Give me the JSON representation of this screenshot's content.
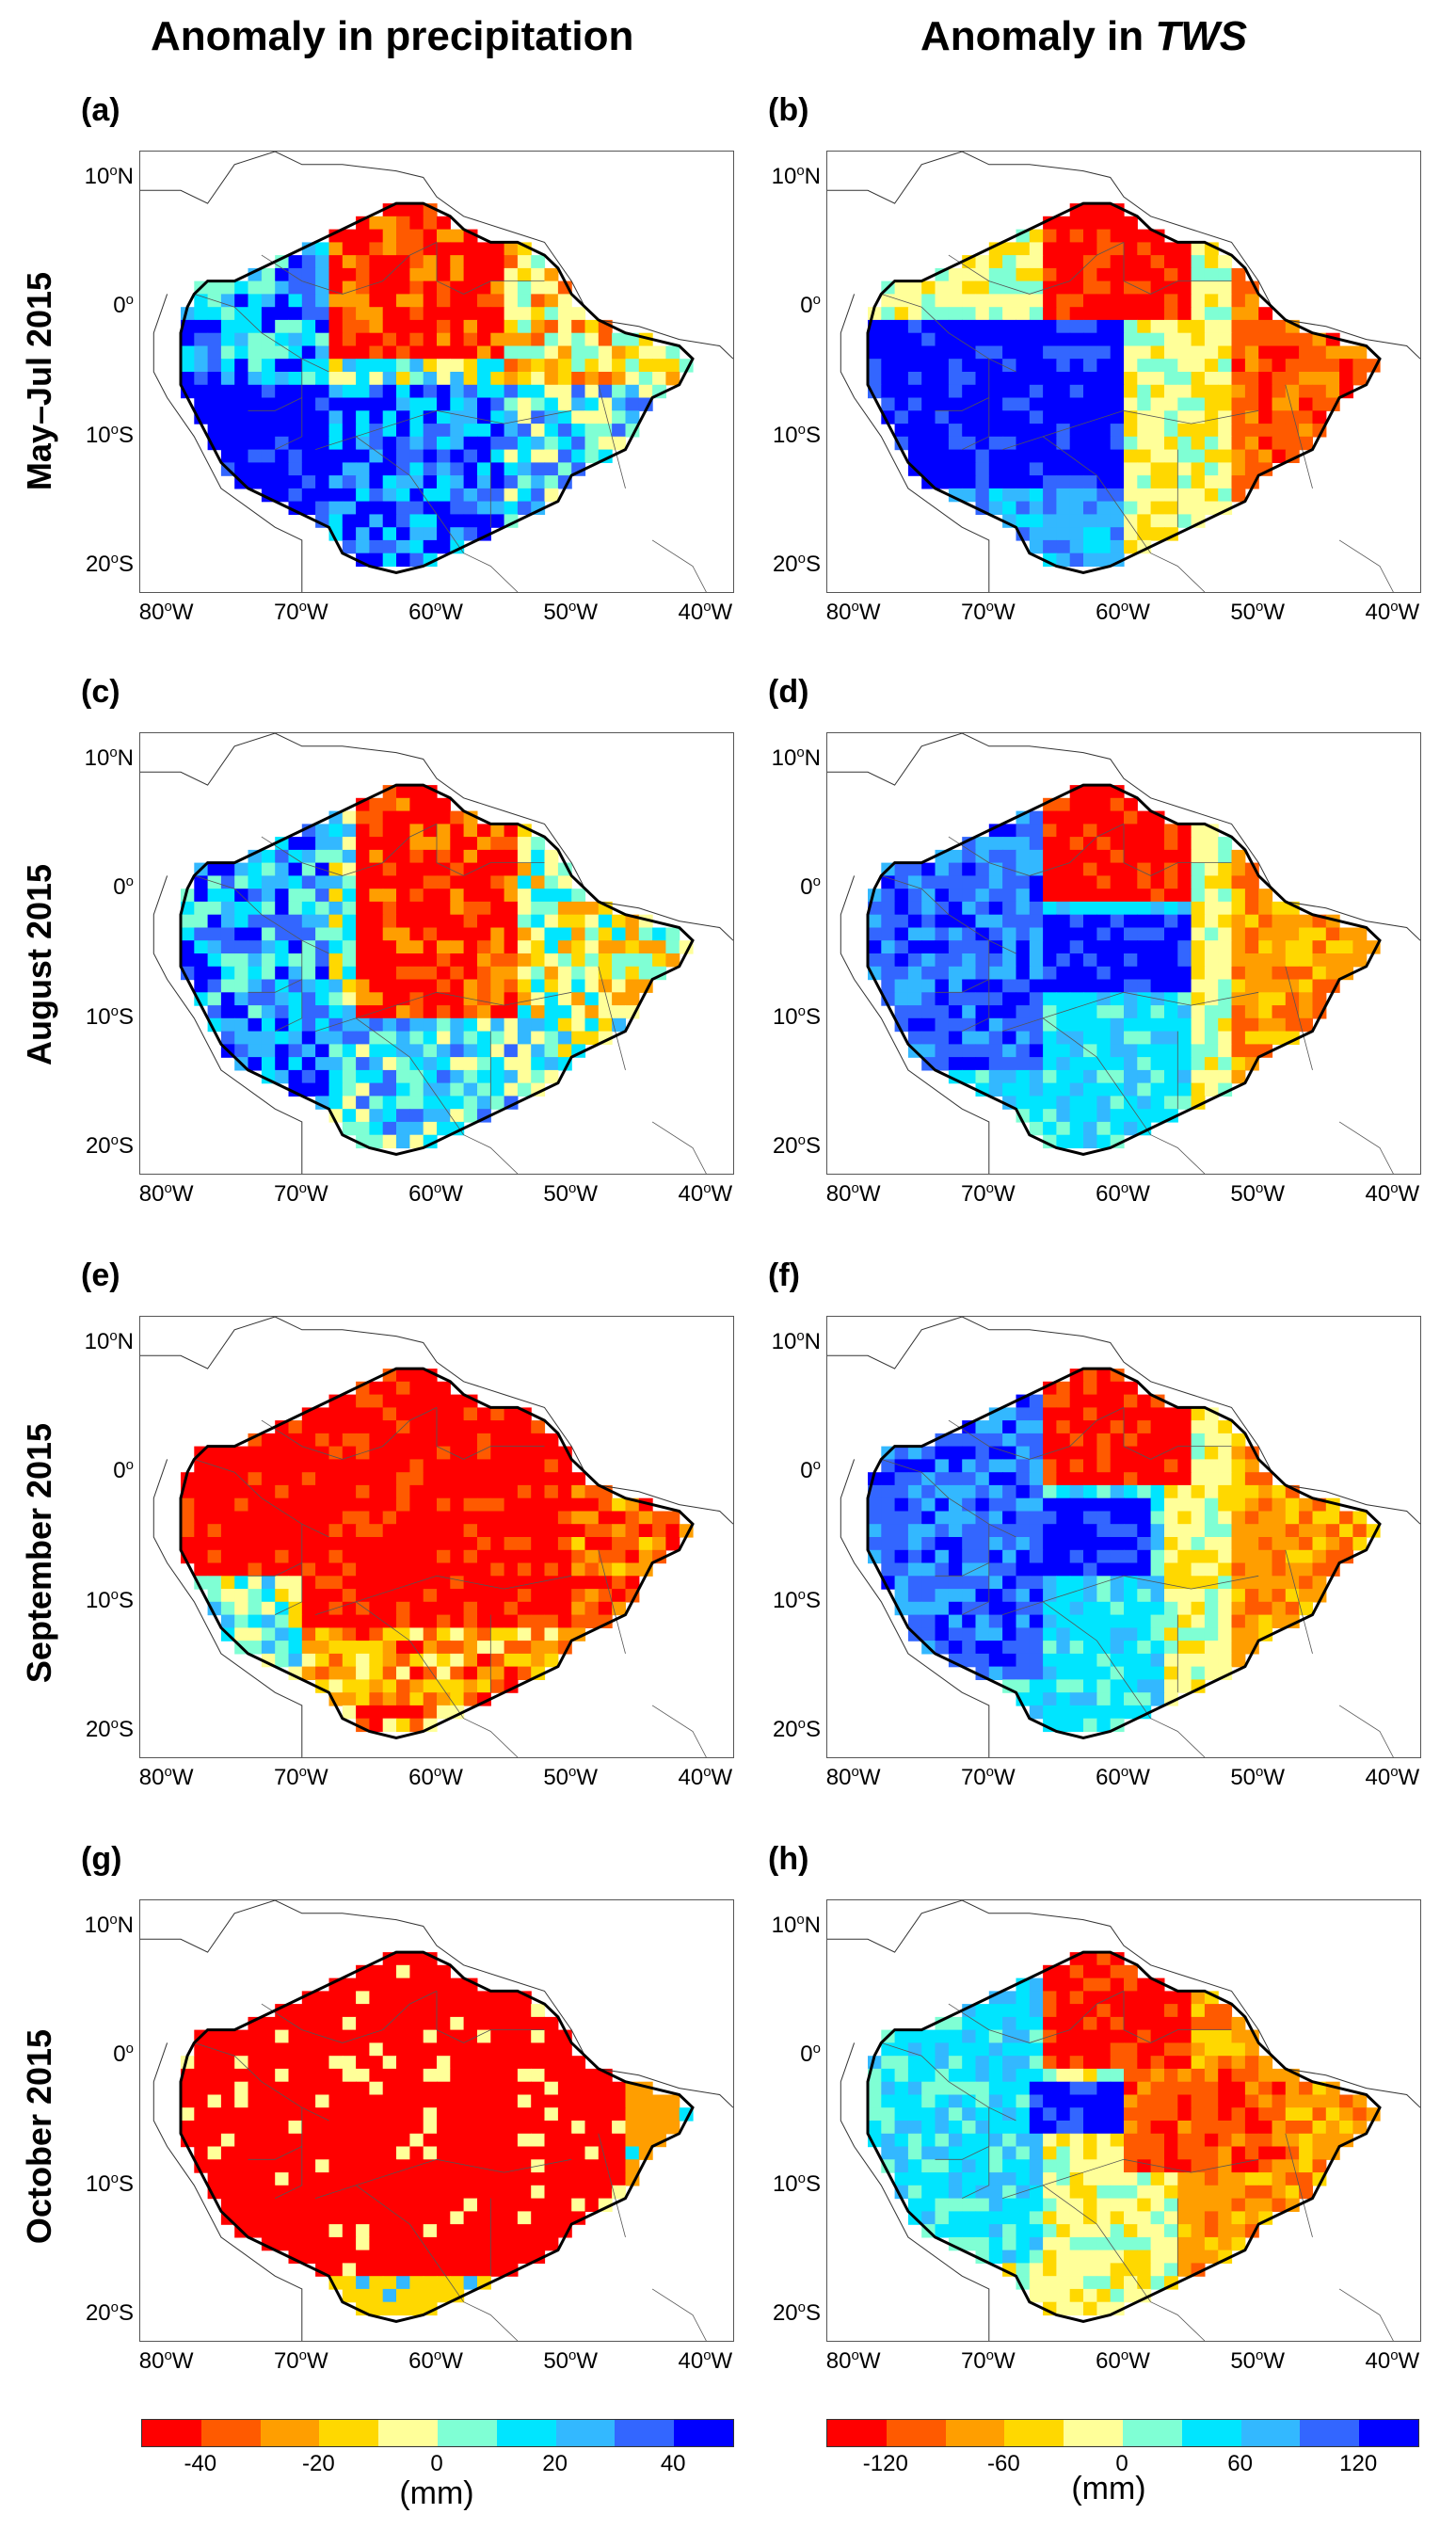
{
  "titles": {
    "precip": "Anomaly in precipitation",
    "tws_prefix": "Anomaly in ",
    "tws_italic": "TWS"
  },
  "rows": [
    "May–Jul 2015",
    "August 2015",
    "September 2015",
    "October 2015"
  ],
  "panel_letters": [
    "(a)",
    "(b)",
    "(c)",
    "(d)",
    "(e)",
    "(f)",
    "(g)",
    "(h)"
  ],
  "lat_ticks": [
    {
      "num": "10",
      "deg": "o",
      "hemi": "N",
      "value": 10
    },
    {
      "num": "0",
      "deg": "o",
      "hemi": "",
      "value": 0
    },
    {
      "num": "10",
      "deg": "o",
      "hemi": "S",
      "value": -10
    },
    {
      "num": "20",
      "deg": "o",
      "hemi": "S",
      "value": -20
    }
  ],
  "lon_ticks": [
    {
      "num": "80",
      "deg": "o",
      "hemi": "W",
      "value": -80
    },
    {
      "num": "70",
      "deg": "o",
      "hemi": "W",
      "value": -70
    },
    {
      "num": "60",
      "deg": "o",
      "hemi": "W",
      "value": -60
    },
    {
      "num": "50",
      "deg": "o",
      "hemi": "W",
      "value": -50
    },
    {
      "num": "40",
      "deg": "o",
      "hemi": "W",
      "value": -40
    }
  ],
  "colorbars": {
    "precip": {
      "colors": [
        "#ff0000",
        "#ff5a00",
        "#ff9e00",
        "#ffd800",
        "#ffff99",
        "#7fffd4",
        "#00e5ff",
        "#33b8ff",
        "#3366ff",
        "#0000ff"
      ],
      "ticks": [
        {
          "label": "-40",
          "value": -40
        },
        {
          "label": "-20",
          "value": -20
        },
        {
          "label": "0",
          "value": 0
        },
        {
          "label": "20",
          "value": 20
        },
        {
          "label": "40",
          "value": 40
        }
      ],
      "range": [
        -50,
        50
      ],
      "unit": "(mm)"
    },
    "tws": {
      "colors": [
        "#ff0000",
        "#ff5a00",
        "#ff9e00",
        "#ffd800",
        "#ffff99",
        "#7fffd4",
        "#00e5ff",
        "#33b8ff",
        "#3366ff",
        "#0000ff"
      ],
      "ticks": [
        {
          "label": "-120",
          "value": -120
        },
        {
          "label": "-60",
          "value": -60
        },
        {
          "label": "0",
          "value": 0
        },
        {
          "label": "60",
          "value": 60
        },
        {
          "label": "120",
          "value": 120
        }
      ],
      "range": [
        -150,
        150
      ],
      "unit": "(mm)"
    }
  }
}
